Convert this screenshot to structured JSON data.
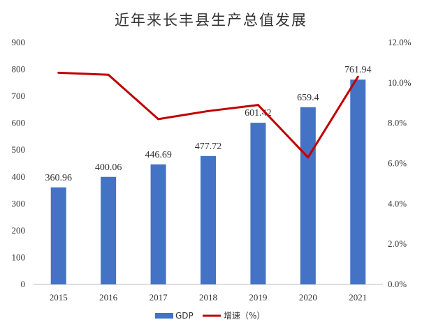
{
  "chart_data": {
    "type": "bar",
    "title": "近年来长丰县生产总值发展",
    "categories": [
      "2015",
      "2016",
      "2017",
      "2018",
      "2019",
      "2020",
      "2021"
    ],
    "series": [
      {
        "name": "GDP",
        "type": "bar",
        "axis": "left",
        "color": "#4472c4",
        "values": [
          360.96,
          400.06,
          446.69,
          477.72,
          601.42,
          659.4,
          761.94
        ],
        "labels": [
          "360.96",
          "400.06",
          "446.69",
          "477.72",
          "601.42",
          "659.4",
          "761.94"
        ]
      },
      {
        "name": "增速（%）",
        "type": "line",
        "axis": "right",
        "color": "#c00000",
        "values": [
          10.5,
          10.4,
          8.2,
          8.6,
          8.9,
          6.3,
          10.3
        ]
      }
    ],
    "left_axis": {
      "min": 0,
      "max": 900,
      "ticks": [
        "0",
        "100",
        "200",
        "300",
        "400",
        "500",
        "600",
        "700",
        "800",
        "900"
      ]
    },
    "right_axis": {
      "min": 0,
      "max": 12,
      "ticks": [
        "0.0%",
        "2.0%",
        "4.0%",
        "6.0%",
        "8.0%",
        "10.0%",
        "12.0%"
      ]
    },
    "legend": [
      "GDP",
      "增速（%）"
    ],
    "legend_position": "bottom",
    "grid": false
  }
}
